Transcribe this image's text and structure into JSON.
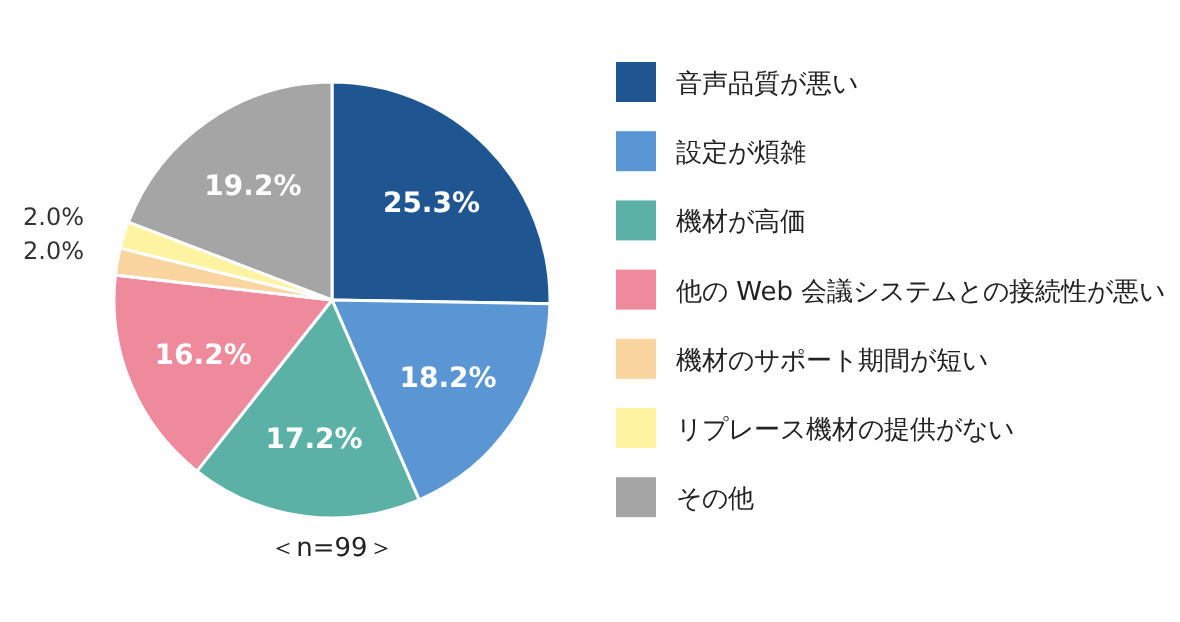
{
  "chart_data": {
    "type": "pie",
    "categories": [
      "音声品質が悪い",
      "設定が煩雑",
      "機材が高価",
      "他の Web 会議システムとの接続性が悪い",
      "機材のサポート期間が短い",
      "リプレース機材の提供がない",
      "その他"
    ],
    "values": [
      25.3,
      18.2,
      17.2,
      16.2,
      2.0,
      2.0,
      19.2
    ],
    "colors": [
      "#1f5591",
      "#5b96d4",
      "#5cb1a7",
      "#ef8a9c",
      "#fbd5a0",
      "#fdf3a0",
      "#a5a5a5"
    ],
    "value_labels": [
      "25.3%",
      "18.2%",
      "17.2%",
      "16.2%",
      "2.0%",
      "2.0%",
      "19.2%"
    ],
    "legend": "right",
    "annotations": [
      "＜n=99＞"
    ]
  }
}
